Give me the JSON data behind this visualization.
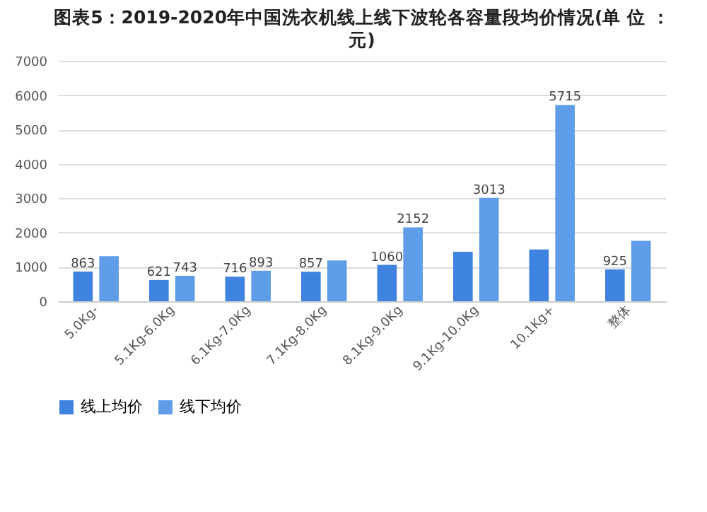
{
  "chart_data": {
    "type": "bar",
    "title": "图表5：2019-2020年中国洗衣机线上线下波轮各容量段均价情况(单 位 ：元)",
    "categories": [
      "5.0Kg-",
      "5.1Kg-6.0Kg",
      "6.1Kg-7.0Kg",
      "7.1Kg-8.0Kg",
      "8.1Kg-9.0Kg",
      "9.1Kg-10.0Kg",
      "10.1Kg+",
      "整体"
    ],
    "series": [
      {
        "name": "线上均价",
        "color": "#3f83e0",
        "values": [
          863,
          621,
          716,
          857,
          1060,
          1440,
          1510,
          925
        ],
        "value_labels": [
          "863",
          "621",
          "716",
          "857",
          "1060",
          null,
          null,
          "925"
        ]
      },
      {
        "name": "线下均价",
        "color": "#5f9de9",
        "values": [
          1310,
          743,
          893,
          1190,
          2152,
          3013,
          5715,
          1760
        ],
        "value_labels": [
          null,
          "743",
          "893",
          null,
          "2152",
          "3013",
          "5715",
          null
        ]
      }
    ],
    "ylim": [
      0,
      7000
    ],
    "yticks": [
      0,
      1000,
      2000,
      3000,
      4000,
      5000,
      6000,
      7000
    ],
    "grid": "y",
    "legend": "bottom"
  }
}
